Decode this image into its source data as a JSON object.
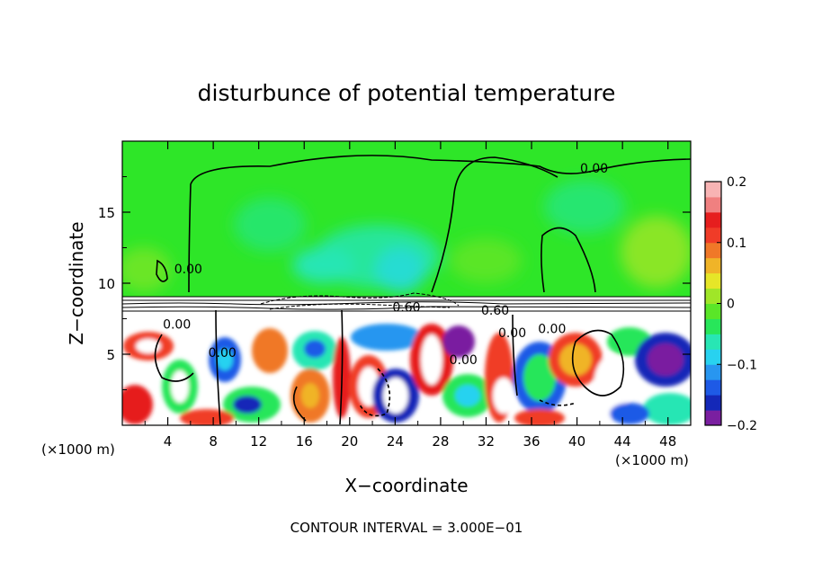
{
  "chart_data": {
    "type": "heatmap",
    "title": "disturbunce of potential temperature",
    "xlabel": "X−coordinate",
    "ylabel": "Z−coordinate",
    "x_unit_left": "(×1000 m)",
    "x_unit_right": "(×1000 m)",
    "xlim": [
      0,
      50
    ],
    "ylim": [
      0,
      20
    ],
    "x_ticks": [
      4,
      8,
      12,
      16,
      20,
      24,
      28,
      32,
      36,
      40,
      44,
      48
    ],
    "x_tick_labels": [
      "4",
      "8",
      "12",
      "16",
      "20",
      "24",
      "28",
      "32",
      "36",
      "40",
      "44",
      "48"
    ],
    "y_ticks": [
      5,
      10,
      15
    ],
    "y_tick_labels": [
      "5",
      "10",
      "15"
    ],
    "colorbar": {
      "range": [
        -0.2,
        0.2
      ],
      "tick_values": [
        0.2,
        0.1,
        0,
        -0.1,
        -0.2
      ],
      "tick_labels": [
        "0.2",
        "0.1",
        "0",
        "−0.1",
        "−0.2"
      ],
      "colors": [
        "#7a1fa0",
        "#1428b8",
        "#1e5ae6",
        "#2896f0",
        "#28d2f0",
        "#28e6b4",
        "#28e65a",
        "#5ae628",
        "#a0e628",
        "#e6e628",
        "#f0b428",
        "#f07828",
        "#f03c28",
        "#e61e1e",
        "#f08080",
        "#f8b4b4"
      ]
    },
    "contour_labels": [
      {
        "text": "0.00",
        "x": 41.5,
        "y": 17.8
      },
      {
        "text": "0.00",
        "x": 5.8,
        "y": 10.7
      },
      {
        "text": "0.00",
        "x": 4.8,
        "y": 6.8
      },
      {
        "text": "0.60",
        "x": 25.0,
        "y": 8.0
      },
      {
        "text": "0.60",
        "x": 32.8,
        "y": 7.8
      },
      {
        "text": "0.00",
        "x": 34.3,
        "y": 6.2
      },
      {
        "text": "0.00",
        "x": 37.8,
        "y": 6.5
      },
      {
        "text": "0.00",
        "x": 8.8,
        "y": 4.8
      },
      {
        "text": "0.00",
        "x": 30.0,
        "y": 4.3
      }
    ],
    "contour_interval": "CONTOUR INTERVAL = 3.000E−01"
  }
}
